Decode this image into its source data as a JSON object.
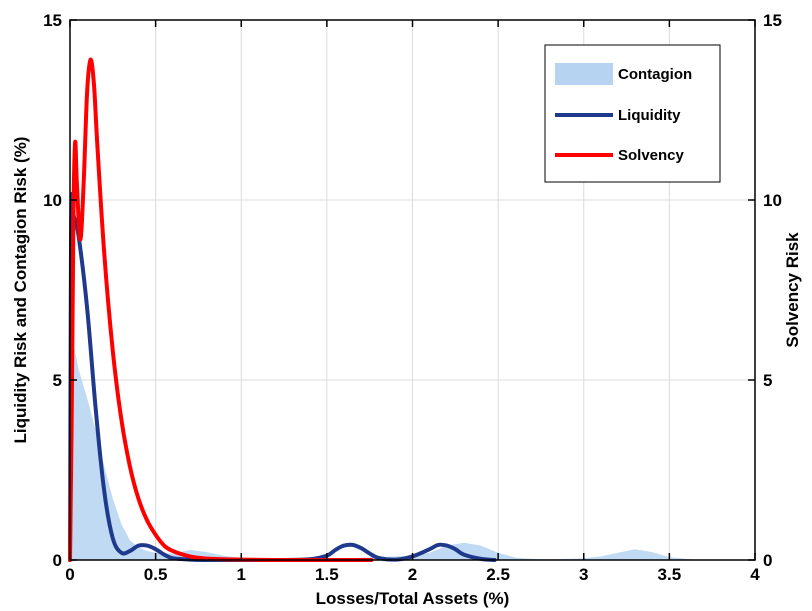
{
  "chart_data": {
    "type": "line",
    "xlabel": "Losses/Total Assets (%)",
    "ylabel_left": "Liquidity Risk and Contagion Risk (%)",
    "ylabel_right": "Solvency Risk",
    "xlim": [
      0,
      4
    ],
    "ylim_left": [
      0,
      15
    ],
    "ylim_right": [
      0,
      15
    ],
    "x_ticks": [
      0,
      0.5,
      1,
      1.5,
      2,
      2.5,
      3,
      3.5,
      4
    ],
    "x_tick_labels": [
      "0",
      "0.5",
      "1",
      "1.5",
      "2",
      "2.5",
      "3",
      "3.5",
      "4"
    ],
    "y_ticks_left": [
      0,
      5,
      10,
      15
    ],
    "y_tick_labels_left": [
      "0",
      "5",
      "10",
      "15"
    ],
    "y_ticks_right": [
      0,
      5,
      10,
      15
    ],
    "y_tick_labels_right": [
      "0",
      "5",
      "10",
      "15"
    ],
    "grid": true,
    "legend_position": "top-right",
    "colors": {
      "contagion": "#b6d4f2",
      "liquidity": "#1f3a8c",
      "solvency": "#ff0000"
    },
    "series": [
      {
        "name": "Contagion",
        "style": "area",
        "x": [
          0,
          0.005,
          0.02,
          0.05,
          0.1,
          0.15,
          0.2,
          0.25,
          0.3,
          0.35,
          0.4,
          0.45,
          0.5,
          0.6,
          0.7,
          0.8,
          0.9,
          1.0,
          1.1,
          1.2,
          1.3,
          1.4,
          1.5,
          1.6,
          1.7,
          1.8,
          1.9,
          2.0,
          2.1,
          2.2,
          2.3,
          2.4,
          2.5,
          2.6,
          2.7,
          2.8,
          2.9,
          3.0,
          3.1,
          3.2,
          3.3,
          3.4,
          3.5,
          3.6,
          3.7
        ],
        "values": [
          0,
          6.3,
          6.0,
          5.3,
          4.5,
          3.6,
          2.6,
          1.7,
          1.0,
          0.55,
          0.35,
          0.25,
          0.2,
          0.18,
          0.28,
          0.22,
          0.12,
          0.06,
          0.03,
          0.02,
          0.02,
          0.02,
          0.03,
          0.05,
          0.06,
          0.08,
          0.1,
          0.12,
          0.2,
          0.4,
          0.48,
          0.4,
          0.2,
          0.07,
          0.03,
          0.02,
          0.03,
          0.05,
          0.1,
          0.2,
          0.3,
          0.22,
          0.08,
          0.03,
          0
        ]
      },
      {
        "name": "Liquidity",
        "style": "line",
        "x": [
          0,
          0.005,
          0.01,
          0.02,
          0.05,
          0.1,
          0.15,
          0.2,
          0.25,
          0.3,
          0.35,
          0.4,
          0.45,
          0.5,
          0.55,
          0.6,
          0.7,
          0.8,
          1.0,
          1.2,
          1.4,
          1.5,
          1.55,
          1.6,
          1.65,
          1.7,
          1.75,
          1.8,
          1.9,
          2.0,
          2.1,
          2.15,
          2.2,
          2.25,
          2.3,
          2.4,
          2.48
        ],
        "values": [
          0,
          8.0,
          10.1,
          9.6,
          9.0,
          7.0,
          4.2,
          1.9,
          0.6,
          0.2,
          0.25,
          0.4,
          0.4,
          0.3,
          0.15,
          0.05,
          0.01,
          0.0,
          0.0,
          0.0,
          0.02,
          0.12,
          0.28,
          0.4,
          0.42,
          0.33,
          0.18,
          0.06,
          0.01,
          0.1,
          0.3,
          0.42,
          0.4,
          0.3,
          0.15,
          0.03,
          0.0
        ]
      },
      {
        "name": "Solvency",
        "style": "line",
        "x": [
          0,
          0.01,
          0.02,
          0.03,
          0.04,
          0.06,
          0.08,
          0.1,
          0.12,
          0.14,
          0.16,
          0.2,
          0.25,
          0.3,
          0.35,
          0.4,
          0.45,
          0.5,
          0.55,
          0.6,
          0.7,
          0.8,
          0.9,
          1.0,
          1.2,
          1.4,
          1.6,
          1.76
        ],
        "values": [
          0,
          4.0,
          9.5,
          11.6,
          10.5,
          8.9,
          10.5,
          13.0,
          13.9,
          13.2,
          11.5,
          8.5,
          5.8,
          3.9,
          2.6,
          1.7,
          1.1,
          0.7,
          0.4,
          0.25,
          0.1,
          0.04,
          0.02,
          0.01,
          0.0,
          0.0,
          0.0,
          0.0
        ]
      }
    ]
  }
}
